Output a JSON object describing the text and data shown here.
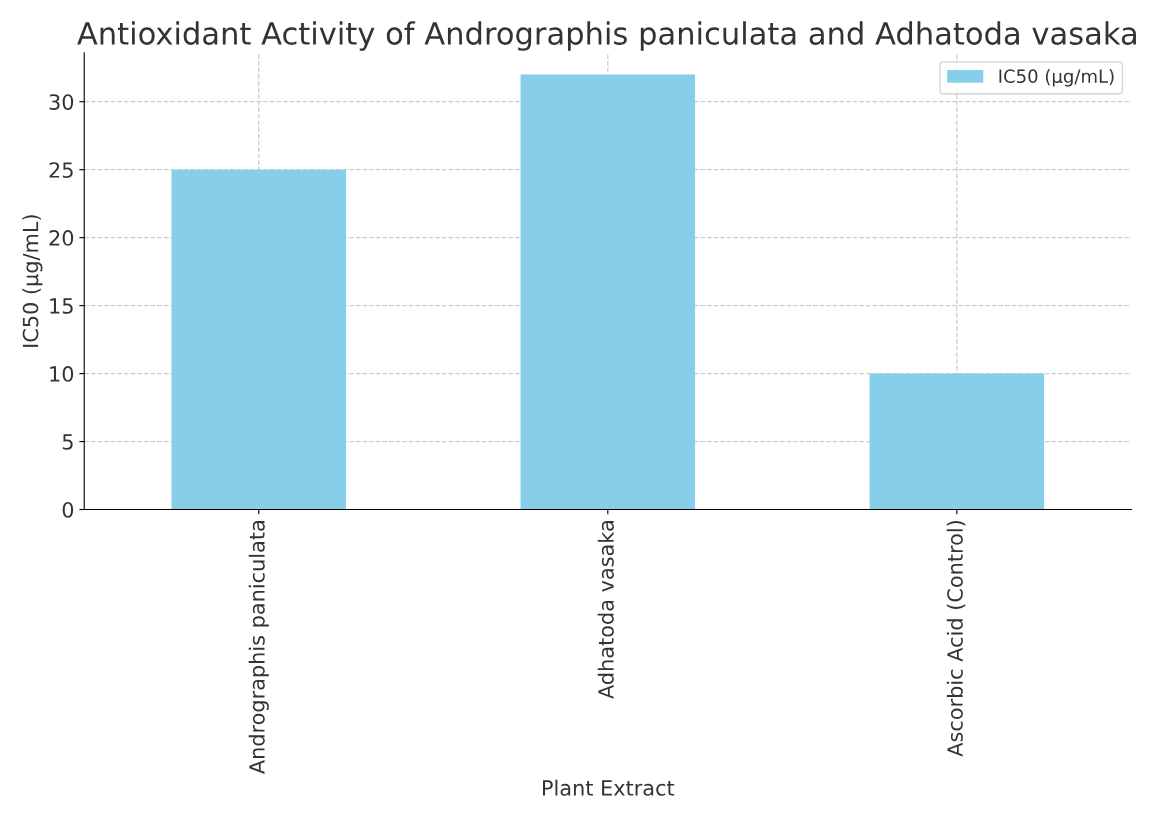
{
  "chart_data": {
    "type": "bar",
    "title": "Antioxidant Activity of Andrographis paniculata and Adhatoda vasaka",
    "xlabel": "Plant Extract",
    "ylabel": "IC50 (µg/mL)",
    "categories": [
      "Andrographis paniculata",
      "Adhatoda vasaka",
      "Ascorbic Acid (Control)"
    ],
    "series": [
      {
        "name": "IC50 (µg/mL)",
        "color": "#87ceeb",
        "values": [
          25,
          32,
          10
        ]
      }
    ],
    "ylim": [
      0,
      33.6
    ],
    "yticks": [
      0,
      5,
      10,
      15,
      20,
      25,
      30
    ],
    "grid": true,
    "legend": "top right"
  }
}
